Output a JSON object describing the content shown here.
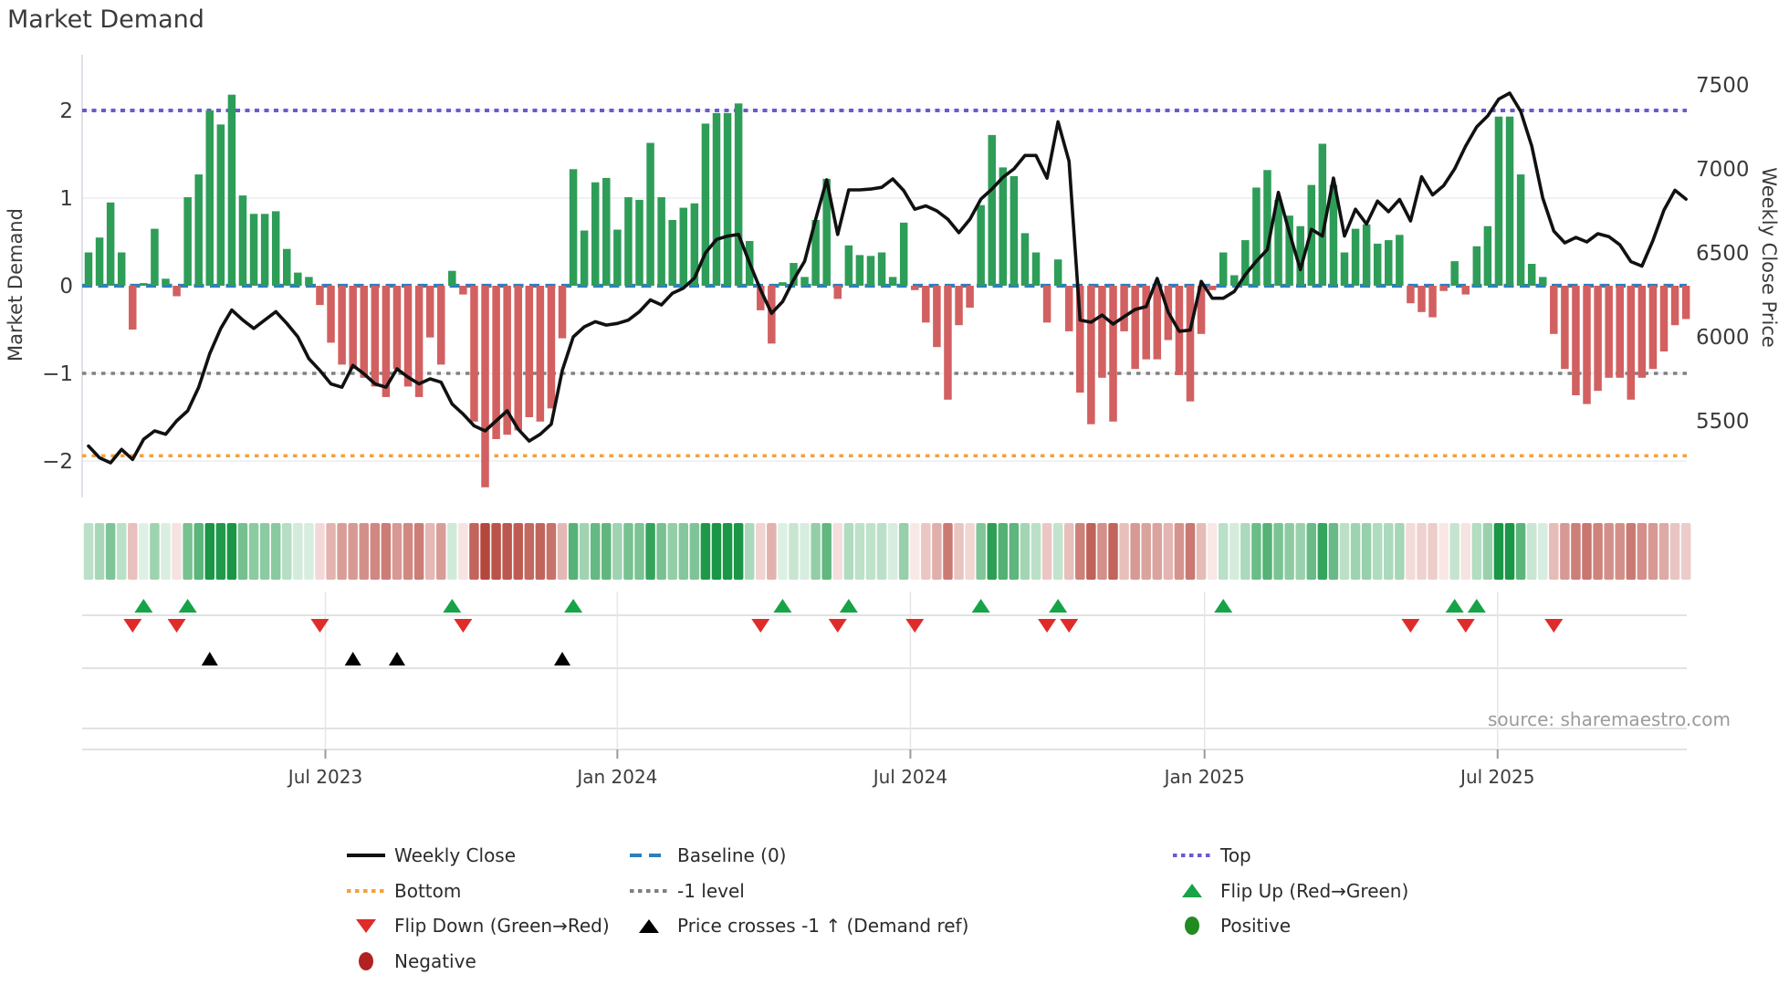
{
  "title": "Market Demand",
  "source": "source: sharemaestro.com",
  "axes": {
    "left_label": "Market Demand",
    "right_label": "Weekly Close Price",
    "left_ticks": [
      "2",
      "1",
      "0",
      "−1",
      "−2"
    ],
    "left_tick_values": [
      2,
      1,
      0,
      -1,
      -2
    ],
    "right_ticks": [
      "7500",
      "7000",
      "6500",
      "6000",
      "5500"
    ],
    "right_tick_values": [
      7500,
      7000,
      6500,
      6000,
      5500
    ],
    "x_ticks": [
      {
        "label": "Jul 2023",
        "week": 21.5
      },
      {
        "label": "Jan 2024",
        "week": 48.0
      },
      {
        "label": "Jul 2024",
        "week": 74.6
      },
      {
        "label": "Jan 2025",
        "week": 101.3
      },
      {
        "label": "Jul 2025",
        "week": 127.9
      }
    ]
  },
  "chart_data": {
    "type": "bar+line",
    "x_unit": "weeks (Feb 2023 – Nov 2025)",
    "demand_ylim": [
      -2.4,
      2.4
    ],
    "price_ylim": [
      5500,
      7500
    ],
    "reference_lines": {
      "top": {
        "value": 2.0,
        "label": "Top",
        "color": "#6a5acd",
        "style": "dotted"
      },
      "baseline": {
        "value": 0.0,
        "label": "Baseline (0)",
        "color": "#2e7ebb",
        "style": "dashed"
      },
      "minus_one": {
        "value": -1.0,
        "label": "-1 level",
        "color": "#808080",
        "style": "dotted"
      },
      "bottom": {
        "value": -1.94,
        "label": "Bottom",
        "color": "#f2a23c",
        "style": "dotted"
      }
    },
    "demand": [
      0.38,
      0.55,
      0.95,
      0.38,
      -0.5,
      0.03,
      0.65,
      0.08,
      -0.12,
      1.01,
      1.27,
      2.0,
      1.84,
      2.18,
      1.03,
      0.82,
      0.82,
      0.85,
      0.42,
      0.15,
      0.1,
      -0.22,
      -0.65,
      -0.9,
      -0.95,
      -1.05,
      -1.15,
      -1.27,
      -0.95,
      -1.15,
      -1.27,
      -0.59,
      -0.9,
      0.17,
      -0.1,
      -1.55,
      -2.3,
      -1.75,
      -1.7,
      -1.65,
      -1.5,
      -1.55,
      -1.4,
      -0.6,
      1.33,
      0.63,
      1.18,
      1.23,
      0.64,
      1.01,
      0.98,
      1.63,
      1.01,
      0.75,
      0.89,
      0.94,
      1.85,
      1.97,
      1.97,
      2.08,
      0.51,
      -0.28,
      -0.66,
      0.04,
      0.26,
      0.1,
      0.75,
      1.22,
      -0.15,
      0.46,
      0.35,
      0.34,
      0.38,
      0.1,
      0.72,
      -0.05,
      -0.42,
      -0.7,
      -1.3,
      -0.45,
      -0.25,
      0.92,
      1.72,
      1.35,
      1.25,
      0.6,
      0.38,
      -0.42,
      0.3,
      -0.52,
      -1.22,
      -1.58,
      -1.05,
      -1.55,
      -0.52,
      -0.95,
      -0.84,
      -0.84,
      -0.62,
      -1.02,
      -1.32,
      -0.55,
      -0.05,
      0.38,
      0.12,
      0.52,
      1.12,
      1.32,
      0.98,
      0.8,
      0.68,
      1.15,
      1.62,
      1.15,
      0.38,
      0.65,
      0.7,
      0.48,
      0.52,
      0.58,
      -0.2,
      -0.3,
      -0.36,
      -0.06,
      0.28,
      -0.1,
      0.45,
      0.68,
      1.93,
      1.93,
      1.27,
      0.25,
      0.1,
      -0.55,
      -0.95,
      -1.25,
      -1.35,
      -1.2,
      -1.05,
      -1.05,
      -1.3,
      -1.05,
      -0.95,
      -0.75,
      -0.45,
      -0.38
    ],
    "weekly_close": [
      5350,
      5280,
      5250,
      5330,
      5270,
      5390,
      5440,
      5420,
      5500,
      5560,
      5700,
      5900,
      6050,
      6160,
      6100,
      6050,
      6100,
      6150,
      6080,
      6000,
      5870,
      5800,
      5720,
      5700,
      5830,
      5780,
      5720,
      5700,
      5810,
      5760,
      5720,
      5750,
      5730,
      5600,
      5540,
      5470,
      5440,
      5500,
      5560,
      5450,
      5380,
      5420,
      5480,
      5800,
      6000,
      6060,
      6090,
      6070,
      6080,
      6100,
      6150,
      6220,
      6190,
      6260,
      6290,
      6350,
      6500,
      6580,
      6600,
      6610,
      6440,
      6280,
      6140,
      6210,
      6340,
      6450,
      6700,
      6935,
      6610,
      6875,
      6875,
      6880,
      6890,
      6940,
      6870,
      6760,
      6780,
      6750,
      6700,
      6620,
      6700,
      6820,
      6880,
      6950,
      7000,
      7080,
      7080,
      6945,
      7280,
      7045,
      6100,
      6087,
      6130,
      6076,
      6120,
      6163,
      6180,
      6348,
      6147,
      6033,
      6040,
      6330,
      6230,
      6230,
      6270,
      6370,
      6450,
      6520,
      6860,
      6620,
      6400,
      6640,
      6600,
      6945,
      6600,
      6760,
      6672,
      6808,
      6745,
      6818,
      6690,
      6953,
      6845,
      6900,
      7000,
      7136,
      7250,
      7315,
      7415,
      7451,
      7342,
      7136,
      6826,
      6630,
      6560,
      6592,
      6565,
      6614,
      6597,
      6548,
      6448,
      6421,
      6574,
      6755,
      6873,
      6820
    ],
    "markers": {
      "flip_up_weeks": [
        5,
        9,
        33,
        44,
        63,
        69,
        81,
        88,
        103,
        124,
        126
      ],
      "flip_down_weeks": [
        4,
        8,
        21,
        34,
        61,
        68,
        75,
        87,
        89,
        120,
        125,
        133
      ],
      "price_cross_weeks": [
        11,
        24,
        28,
        43
      ]
    },
    "heatmap": "demand values repeated as a color strip (green positive / red negative, intensity by magnitude)",
    "colors": {
      "bar_positive": "#2e9d58",
      "bar_negative": "#d26060",
      "price_line": "#111111",
      "top_line": "#6a5acd",
      "baseline": "#2e7ebb",
      "minus_one_line": "#808080",
      "bottom_line": "#f2a23c",
      "flip_up": "#17a348",
      "flip_down": "#e02b2b",
      "price_cross": "#000000",
      "positive_dot": "#218a21",
      "negative_dot": "#b22222"
    }
  },
  "legend": {
    "columns": [
      {
        "items": [
          {
            "swatch": "line",
            "color": "#111111",
            "label": "Weekly Close"
          },
          {
            "swatch": "dotted",
            "color": "#f2a23c",
            "label": "Bottom"
          },
          {
            "swatch": "tri-down",
            "color": "#e02b2b",
            "label": "Flip Down (Green→Red)"
          },
          {
            "swatch": "circle",
            "color": "#b22222",
            "label": "Negative"
          }
        ]
      },
      {
        "items": [
          {
            "swatch": "dashed",
            "color": "#2e7ebb",
            "label": "Baseline (0)"
          },
          {
            "swatch": "dotted",
            "color": "#808080",
            "label": "-1 level"
          },
          {
            "swatch": "tri-up",
            "color": "#000000",
            "label": "Price crosses -1 ↑ (Demand ref)"
          }
        ]
      },
      {
        "items": [
          {
            "swatch": "dotted",
            "color": "#6a5acd",
            "label": "Top"
          },
          {
            "swatch": "tri-up",
            "color": "#17a348",
            "label": "Flip Up (Red→Green)"
          },
          {
            "swatch": "circle",
            "color": "#218a21",
            "label": "Positive"
          }
        ]
      }
    ]
  }
}
